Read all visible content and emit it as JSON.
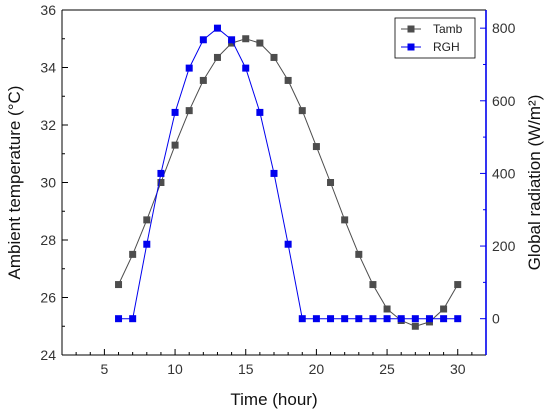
{
  "chart_data": {
    "type": "line",
    "x_label": "Time (hour)",
    "y_left_label": "Ambient temperature (°C)",
    "y_right_label": "Global radiation (W/m²)",
    "x_range": [
      2,
      32
    ],
    "x_ticks": [
      5,
      10,
      15,
      20,
      25,
      30
    ],
    "y_left_range": [
      24,
      36
    ],
    "y_left_ticks": [
      24,
      26,
      28,
      30,
      32,
      34,
      36
    ],
    "y_right_range": [
      -100,
      850
    ],
    "y_right_ticks": [
      0,
      200,
      400,
      600,
      800
    ],
    "x_tick_labels": [
      "5",
      "10",
      "15",
      "20",
      "25",
      "30"
    ],
    "y_left_tick_labels": [
      "24",
      "26",
      "28",
      "30",
      "32",
      "34",
      "36"
    ],
    "y_right_tick_labels": [
      "0",
      "200",
      "400",
      "600",
      "800"
    ],
    "legend_position": "top-right",
    "grid": false,
    "series": [
      {
        "name": "Tamb",
        "axis": "left",
        "color": "#4d4d4d",
        "marker": "square",
        "x": [
          6,
          7,
          8,
          9,
          10,
          11,
          12,
          13,
          14,
          15,
          16,
          17,
          18,
          19,
          20,
          21,
          22,
          23,
          24,
          25,
          26,
          27,
          28,
          29,
          30
        ],
        "y": [
          26.45,
          27.5,
          28.7,
          30.0,
          31.3,
          32.5,
          33.55,
          34.35,
          34.85,
          35.0,
          34.85,
          34.35,
          33.55,
          32.5,
          31.25,
          30.0,
          28.7,
          27.5,
          26.45,
          25.6,
          25.2,
          25.0,
          25.15,
          25.6,
          26.45
        ]
      },
      {
        "name": "RGH",
        "axis": "right",
        "color": "#0000ee",
        "marker": "square",
        "x": [
          6,
          7,
          8,
          9,
          10,
          11,
          12,
          13,
          14,
          15,
          16,
          17,
          18,
          19,
          20,
          21,
          22,
          23,
          24,
          25,
          26,
          27,
          28,
          29,
          30
        ],
        "y": [
          0,
          0,
          205,
          400,
          568,
          690,
          768,
          800,
          768,
          690,
          568,
          400,
          205,
          0,
          0,
          0,
          0,
          0,
          0,
          0,
          0,
          0,
          0,
          0,
          0
        ]
      }
    ]
  }
}
